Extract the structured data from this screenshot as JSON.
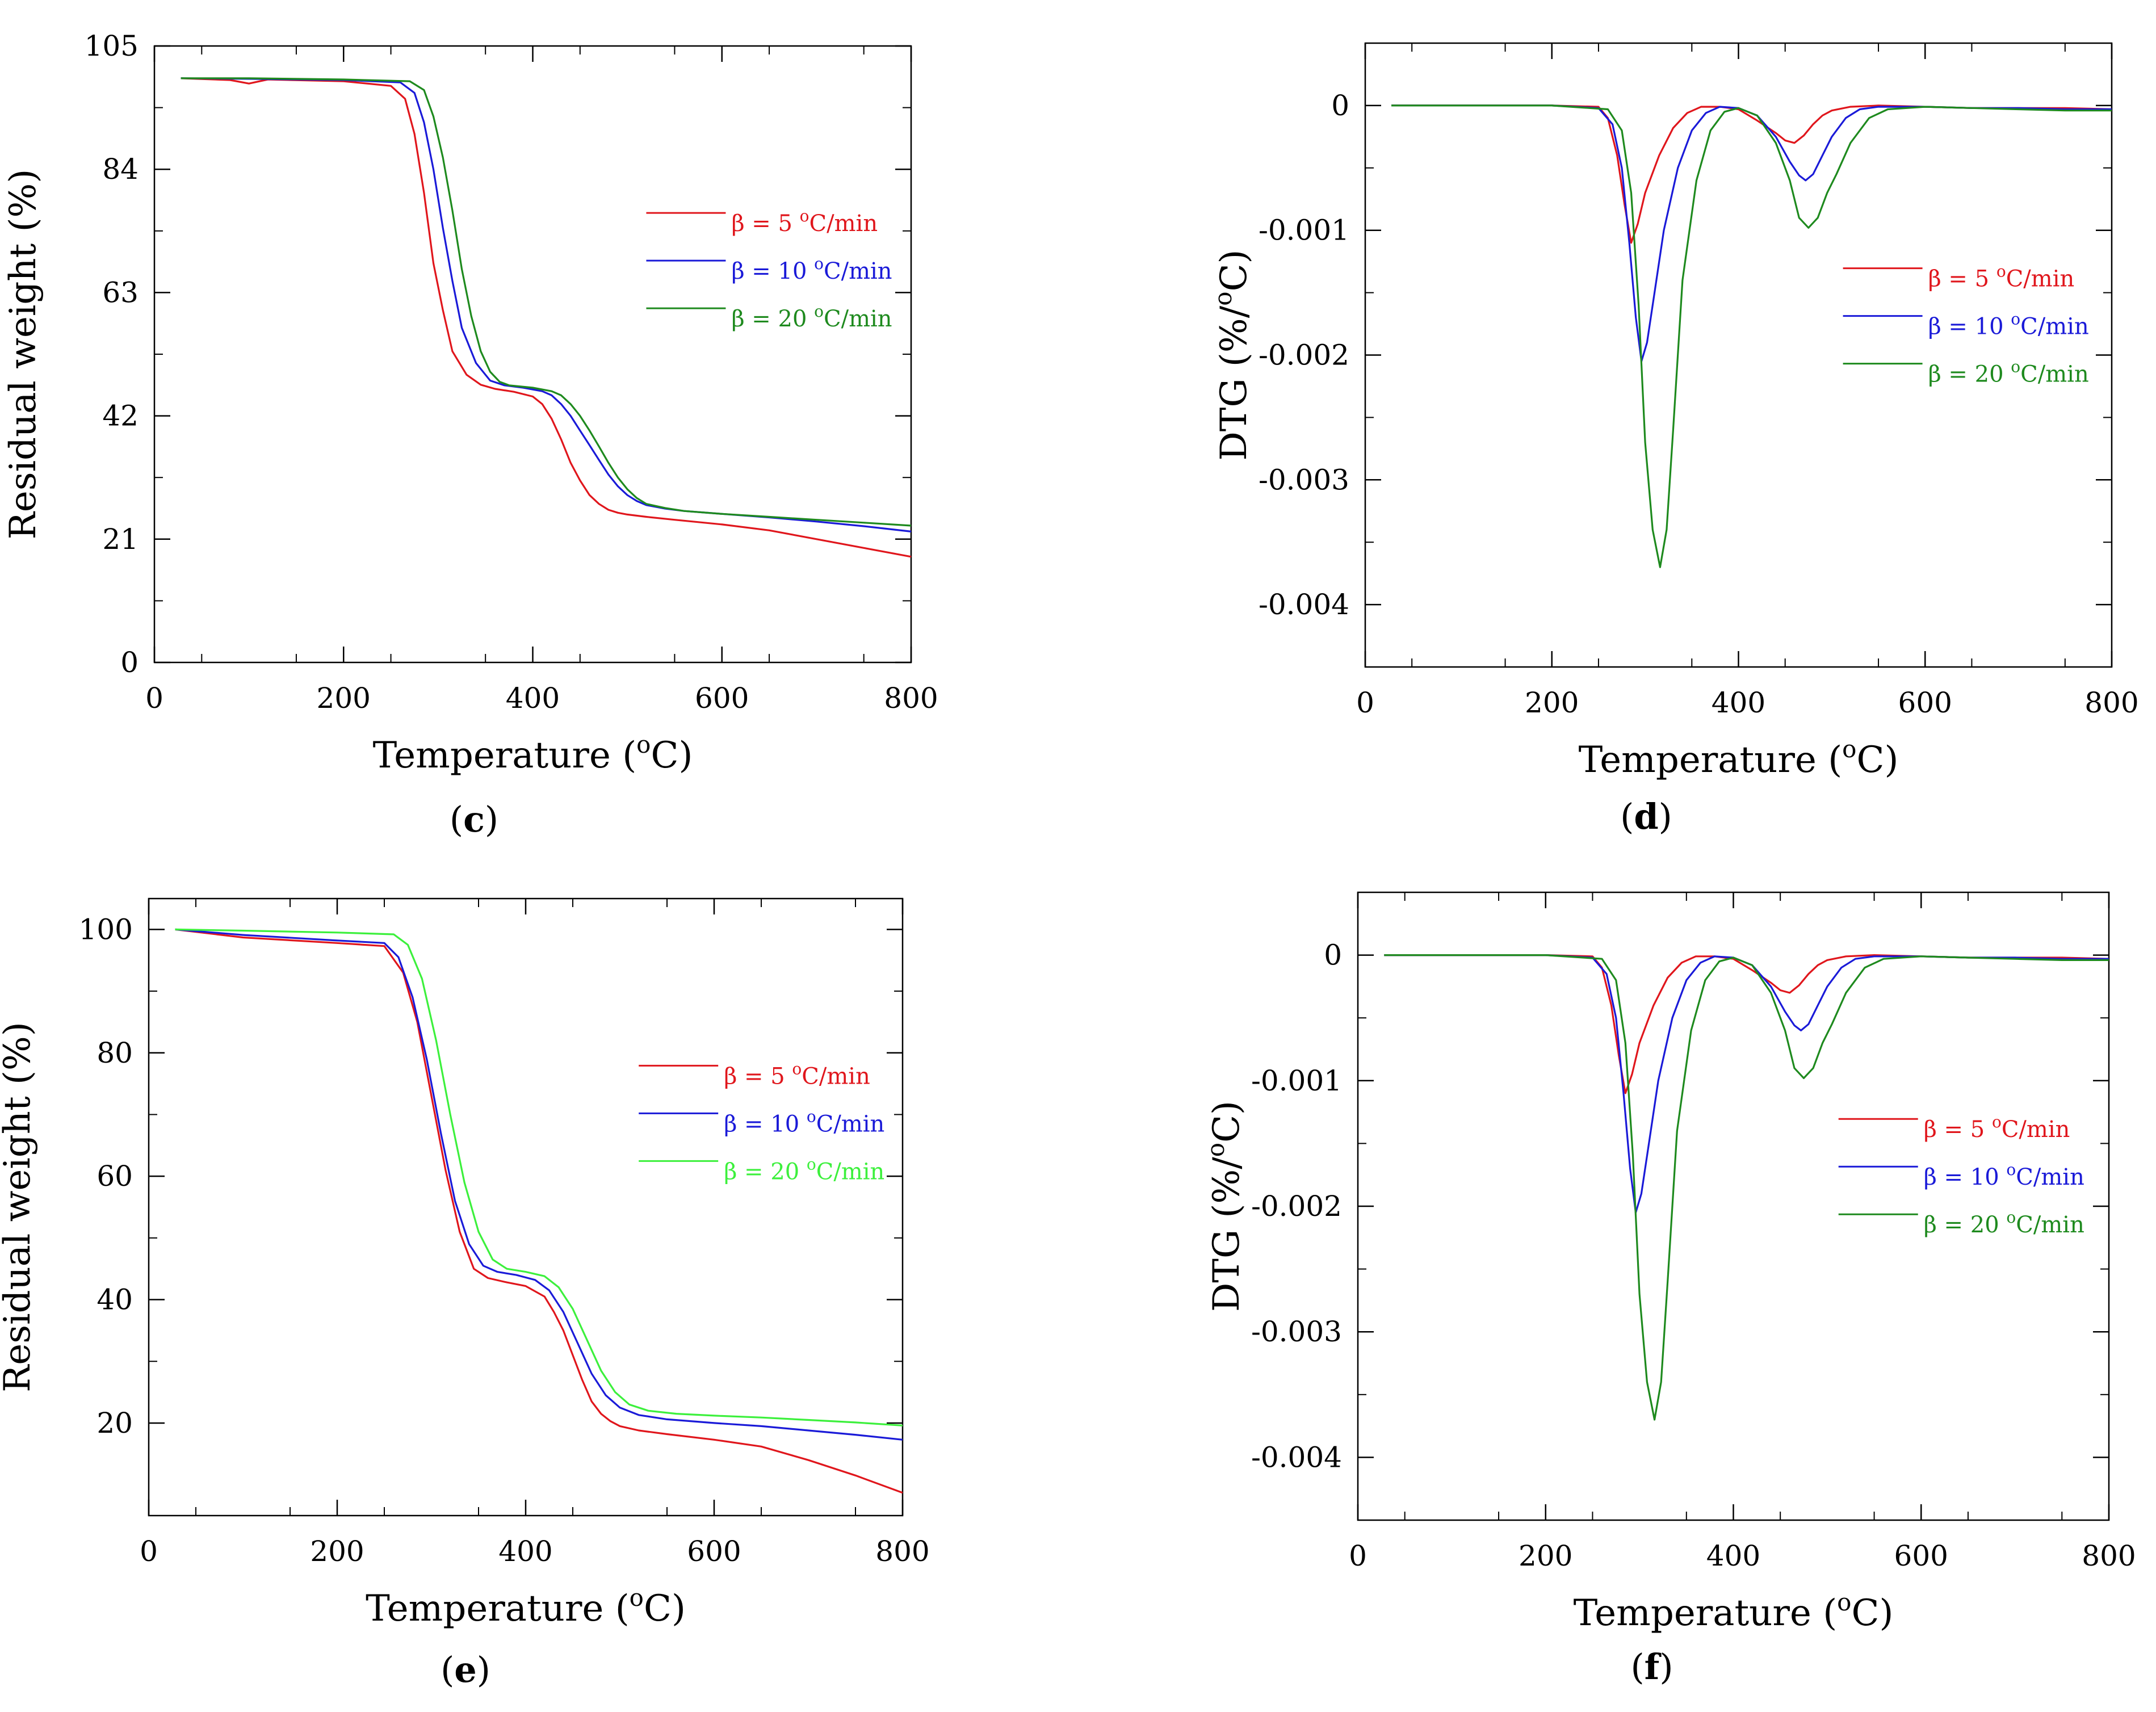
{
  "colors": {
    "red": "#e0161c",
    "blue": "#1a1ad8",
    "green_dark": "#1e8a1e",
    "green_light": "#3cf03c",
    "axis": "#000000"
  },
  "chart_data": [
    {
      "id": "c",
      "type": "line",
      "panel_label": "c",
      "title": "",
      "xlabel": "Temperature (",
      "xlabel_unit": "C)",
      "xlabel_sup": "o",
      "ylabel": "Residual weight (%)",
      "xlim": [
        0,
        800
      ],
      "ylim": [
        0,
        105
      ],
      "xticks": [
        0,
        200,
        400,
        600,
        800
      ],
      "xtick_labels": [
        "0",
        "200",
        "400",
        "600",
        "800"
      ],
      "yticks": [
        0,
        21,
        42,
        63,
        84,
        105
      ],
      "ytick_labels": [
        "0",
        "21",
        "42",
        "63",
        "84",
        "105"
      ],
      "legend_position": "right-middle",
      "series": [
        {
          "name": "β = 5 ",
          "sup": "o",
          "unit": "C/min",
          "color": "#e0161c",
          "x": [
            28,
            80,
            100,
            120,
            200,
            250,
            265,
            275,
            285,
            295,
            305,
            315,
            330,
            345,
            360,
            380,
            400,
            410,
            420,
            430,
            440,
            450,
            460,
            470,
            480,
            490,
            500,
            520,
            550,
            600,
            650,
            700,
            750,
            800
          ],
          "y": [
            99.5,
            99.2,
            98.6,
            99.3,
            99.0,
            98.2,
            96,
            90,
            80,
            68,
            60,
            53,
            49,
            47.3,
            46.6,
            46.1,
            45.3,
            44,
            41.5,
            38,
            34,
            31,
            28.5,
            27,
            26,
            25.5,
            25.2,
            24.8,
            24.3,
            23.5,
            22.5,
            21,
            19.5,
            18
          ]
        },
        {
          "name": "β = 10 ",
          "sup": "o",
          "unit": "C/min",
          "color": "#1a1ad8",
          "x": [
            28,
            100,
            200,
            260,
            275,
            285,
            295,
            305,
            315,
            325,
            340,
            355,
            370,
            390,
            410,
            420,
            430,
            440,
            450,
            460,
            470,
            480,
            490,
            500,
            510,
            520,
            540,
            560,
            600,
            650,
            700,
            750,
            800
          ],
          "y": [
            99.5,
            99.4,
            99.2,
            98.8,
            97,
            92,
            84,
            74,
            65,
            57,
            51,
            48,
            47.2,
            46.8,
            46.2,
            45.5,
            44,
            42,
            39.5,
            37,
            34.5,
            32,
            30,
            28.5,
            27.5,
            26.8,
            26.2,
            25.8,
            25.3,
            24.7,
            24,
            23.2,
            22.3
          ]
        },
        {
          "name": "β = 20 ",
          "sup": "o",
          "unit": "C/min",
          "color": "#1e8a1e",
          "x": [
            28,
            100,
            200,
            270,
            285,
            295,
            305,
            315,
            325,
            335,
            345,
            355,
            365,
            375,
            400,
            420,
            430,
            440,
            450,
            460,
            470,
            480,
            490,
            500,
            510,
            520,
            540,
            560,
            600,
            650,
            700,
            750,
            800
          ],
          "y": [
            99.5,
            99.5,
            99.3,
            99.0,
            97.5,
            93,
            86,
            77,
            67,
            59,
            53,
            49.5,
            47.8,
            47.2,
            46.8,
            46.2,
            45.5,
            44,
            42,
            39.5,
            36.8,
            34,
            31.5,
            29.5,
            28,
            27,
            26.3,
            25.8,
            25.3,
            24.8,
            24.3,
            23.8,
            23.3
          ]
        }
      ]
    },
    {
      "id": "d",
      "type": "line",
      "panel_label": "d",
      "title": "",
      "xlabel": "Temperature (",
      "xlabel_unit": "C)",
      "xlabel_sup": "o",
      "ylabel": "DTG (%/",
      "ylabel_sup": "o",
      "ylabel_unit": "C)",
      "xlim": [
        0,
        800
      ],
      "ylim": [
        -0.0045,
        0.0005
      ],
      "xticks": [
        0,
        200,
        400,
        600,
        800
      ],
      "xtick_labels": [
        "0",
        "200",
        "400",
        "600",
        "800"
      ],
      "yticks": [
        0,
        -0.001,
        -0.002,
        -0.003,
        -0.004
      ],
      "ytick_labels": [
        "0",
        "-0.001",
        "-0.002",
        "-0.003",
        "-0.004"
      ],
      "legend_position": "right-middle",
      "series": [
        {
          "name": "β = 5 ",
          "sup": "o",
          "unit": "C/min",
          "color": "#e0161c",
          "x": [
            28,
            200,
            250,
            260,
            270,
            278,
            285,
            292,
            300,
            315,
            330,
            345,
            360,
            380,
            400,
            420,
            440,
            450,
            460,
            470,
            480,
            490,
            500,
            520,
            550,
            600,
            650,
            700,
            750,
            800
          ],
          "y": [
            0,
            0,
            -1e-05,
            -0.0001,
            -0.0004,
            -0.0008,
            -0.0011,
            -0.00095,
            -0.0007,
            -0.0004,
            -0.00018,
            -6e-05,
            -1e-05,
            -1e-05,
            -3e-05,
            -0.00012,
            -0.00022,
            -0.00028,
            -0.0003,
            -0.00024,
            -0.00015,
            -8e-05,
            -4e-05,
            -1e-05,
            0,
            -1e-05,
            -2e-05,
            -2e-05,
            -2e-05,
            -3e-05
          ]
        },
        {
          "name": "β = 10 ",
          "sup": "o",
          "unit": "C/min",
          "color": "#1a1ad8",
          "x": [
            28,
            200,
            250,
            265,
            275,
            283,
            290,
            296,
            302,
            310,
            320,
            335,
            350,
            365,
            380,
            400,
            420,
            440,
            455,
            465,
            472,
            480,
            490,
            500,
            515,
            530,
            550,
            600,
            650,
            700,
            750,
            800
          ],
          "y": [
            0,
            0,
            -2e-05,
            -0.00015,
            -0.0005,
            -0.0011,
            -0.0017,
            -0.00205,
            -0.0019,
            -0.0015,
            -0.001,
            -0.0005,
            -0.0002,
            -6e-05,
            -1e-05,
            -2e-05,
            -8e-05,
            -0.00025,
            -0.00045,
            -0.00056,
            -0.0006,
            -0.00055,
            -0.0004,
            -0.00025,
            -0.0001,
            -3e-05,
            -1e-05,
            -1e-05,
            -2e-05,
            -2e-05,
            -3e-05,
            -3e-05
          ]
        },
        {
          "name": "β = 20 ",
          "sup": "o",
          "unit": "C/min",
          "color": "#1e8a1e",
          "x": [
            28,
            200,
            260,
            275,
            285,
            293,
            300,
            308,
            316,
            323,
            330,
            340,
            355,
            370,
            385,
            400,
            420,
            440,
            455,
            465,
            475,
            485,
            495,
            505,
            520,
            540,
            560,
            600,
            650,
            700,
            750,
            800
          ],
          "y": [
            0,
            0,
            -3e-05,
            -0.0002,
            -0.0007,
            -0.0016,
            -0.0027,
            -0.0034,
            -0.0037,
            -0.0034,
            -0.0026,
            -0.0014,
            -0.0006,
            -0.0002,
            -5e-05,
            -2e-05,
            -8e-05,
            -0.0003,
            -0.0006,
            -0.0009,
            -0.00098,
            -0.0009,
            -0.0007,
            -0.00055,
            -0.0003,
            -0.0001,
            -3e-05,
            -1e-05,
            -2e-05,
            -3e-05,
            -4e-05,
            -4e-05
          ]
        }
      ]
    },
    {
      "id": "e",
      "type": "line",
      "panel_label": "e",
      "title": "",
      "xlabel": "Temperature (",
      "xlabel_unit": "C)",
      "xlabel_sup": "o",
      "ylabel": "Residual weight (%)",
      "xlim": [
        0,
        800
      ],
      "ylim": [
        5,
        105
      ],
      "xticks": [
        0,
        200,
        400,
        600,
        800
      ],
      "xtick_labels": [
        "0",
        "200",
        "400",
        "600",
        "800"
      ],
      "yticks": [
        20,
        40,
        60,
        80,
        100
      ],
      "ytick_labels": [
        "20",
        "40",
        "60",
        "80",
        "100"
      ],
      "legend_position": "right-middle",
      "series": [
        {
          "name": "β = 5 ",
          "sup": "o",
          "unit": "C/min",
          "color": "#e0161c",
          "x": [
            28,
            100,
            200,
            250,
            270,
            285,
            300,
            315,
            330,
            345,
            360,
            380,
            400,
            420,
            430,
            440,
            450,
            460,
            470,
            480,
            490,
            500,
            520,
            550,
            600,
            650,
            700,
            750,
            800
          ],
          "y": [
            100,
            98.7,
            97.8,
            97.3,
            93,
            85,
            73,
            61,
            51,
            45,
            43.5,
            42.8,
            42.2,
            40.5,
            38,
            35,
            31,
            27,
            23.5,
            21.5,
            20.3,
            19.5,
            18.8,
            18.2,
            17.3,
            16.2,
            14,
            11.5,
            8.7
          ]
        },
        {
          "name": "β = 10 ",
          "sup": "o",
          "unit": "C/min",
          "color": "#1a1ad8",
          "x": [
            28,
            100,
            200,
            250,
            265,
            280,
            295,
            310,
            325,
            340,
            355,
            370,
            390,
            410,
            425,
            440,
            455,
            470,
            485,
            500,
            520,
            550,
            600,
            650,
            700,
            750,
            800
          ],
          "y": [
            100,
            99.1,
            98.2,
            97.8,
            95.5,
            89,
            79,
            67,
            56,
            49,
            45.5,
            44.5,
            44,
            43.2,
            41.5,
            38,
            33,
            28,
            24.5,
            22.5,
            21.3,
            20.6,
            20,
            19.5,
            18.8,
            18.1,
            17.3
          ]
        },
        {
          "name": "β = 20 ",
          "sup": "o",
          "unit": "C/min",
          "color": "#3cf03c",
          "x": [
            28,
            100,
            200,
            260,
            275,
            290,
            305,
            320,
            335,
            350,
            365,
            380,
            400,
            420,
            435,
            450,
            465,
            480,
            495,
            510,
            530,
            560,
            600,
            650,
            700,
            750,
            800
          ],
          "y": [
            100,
            99.8,
            99.5,
            99.2,
            97.5,
            92,
            82,
            70,
            59,
            51,
            46.5,
            45,
            44.5,
            43.8,
            42,
            38.5,
            33.5,
            28.5,
            25,
            23,
            22,
            21.5,
            21.2,
            20.9,
            20.5,
            20.1,
            19.6
          ]
        }
      ]
    },
    {
      "id": "f",
      "type": "line",
      "panel_label": "f",
      "title": "",
      "xlabel": "Temperature (",
      "xlabel_unit": "C)",
      "xlabel_sup": "o",
      "ylabel": "DTG (%/",
      "ylabel_sup": "o",
      "ylabel_unit": "C)",
      "xlim": [
        0,
        800
      ],
      "ylim": [
        -0.0045,
        0.0005
      ],
      "xticks": [
        0,
        200,
        400,
        600,
        800
      ],
      "xtick_labels": [
        "0",
        "200",
        "400",
        "600",
        "800"
      ],
      "yticks": [
        0,
        -0.001,
        -0.002,
        -0.003,
        -0.004
      ],
      "ytick_labels": [
        "0",
        "-0.001",
        "-0.002",
        "-0.003",
        "-0.004"
      ],
      "legend_position": "right-middle",
      "series": [
        {
          "name": "β = 5 ",
          "sup": "o",
          "unit": "C/min",
          "color": "#e0161c",
          "x": [
            28,
            200,
            250,
            260,
            270,
            278,
            285,
            292,
            300,
            315,
            330,
            345,
            360,
            380,
            400,
            420,
            440,
            450,
            460,
            470,
            480,
            490,
            500,
            520,
            550,
            600,
            650,
            700,
            750,
            800
          ],
          "y": [
            0,
            0,
            -1e-05,
            -0.0001,
            -0.0004,
            -0.0008,
            -0.0011,
            -0.00095,
            -0.0007,
            -0.0004,
            -0.00018,
            -6e-05,
            -1e-05,
            -1e-05,
            -3e-05,
            -0.00012,
            -0.00022,
            -0.00028,
            -0.0003,
            -0.00024,
            -0.00015,
            -8e-05,
            -4e-05,
            -1e-05,
            0,
            -1e-05,
            -2e-05,
            -2e-05,
            -2e-05,
            -3e-05
          ]
        },
        {
          "name": "β = 10 ",
          "sup": "o",
          "unit": "C/min",
          "color": "#1a1ad8",
          "x": [
            28,
            200,
            250,
            265,
            275,
            283,
            290,
            296,
            302,
            310,
            320,
            335,
            350,
            365,
            380,
            400,
            420,
            440,
            455,
            465,
            472,
            480,
            490,
            500,
            515,
            530,
            550,
            600,
            650,
            700,
            750,
            800
          ],
          "y": [
            0,
            0,
            -2e-05,
            -0.00015,
            -0.0005,
            -0.0011,
            -0.0017,
            -0.00205,
            -0.0019,
            -0.0015,
            -0.001,
            -0.0005,
            -0.0002,
            -6e-05,
            -1e-05,
            -2e-05,
            -8e-05,
            -0.00025,
            -0.00045,
            -0.00056,
            -0.0006,
            -0.00055,
            -0.0004,
            -0.00025,
            -0.0001,
            -3e-05,
            -1e-05,
            -1e-05,
            -2e-05,
            -2e-05,
            -3e-05,
            -3e-05
          ]
        },
        {
          "name": "β = 20 ",
          "sup": "o",
          "unit": "C/min",
          "color": "#1e8a1e",
          "x": [
            28,
            200,
            260,
            275,
            285,
            293,
            300,
            308,
            316,
            323,
            330,
            340,
            355,
            370,
            385,
            400,
            420,
            440,
            455,
            465,
            475,
            485,
            495,
            505,
            520,
            540,
            560,
            600,
            650,
            700,
            750,
            800
          ],
          "y": [
            0,
            0,
            -3e-05,
            -0.0002,
            -0.0007,
            -0.0016,
            -0.0027,
            -0.0034,
            -0.0037,
            -0.0034,
            -0.0026,
            -0.0014,
            -0.0006,
            -0.0002,
            -5e-05,
            -2e-05,
            -8e-05,
            -0.0003,
            -0.0006,
            -0.0009,
            -0.00098,
            -0.0009,
            -0.0007,
            -0.00055,
            -0.0003,
            -0.0001,
            -3e-05,
            -1e-05,
            -2e-05,
            -3e-05,
            -4e-05,
            -4e-05
          ]
        }
      ]
    }
  ]
}
